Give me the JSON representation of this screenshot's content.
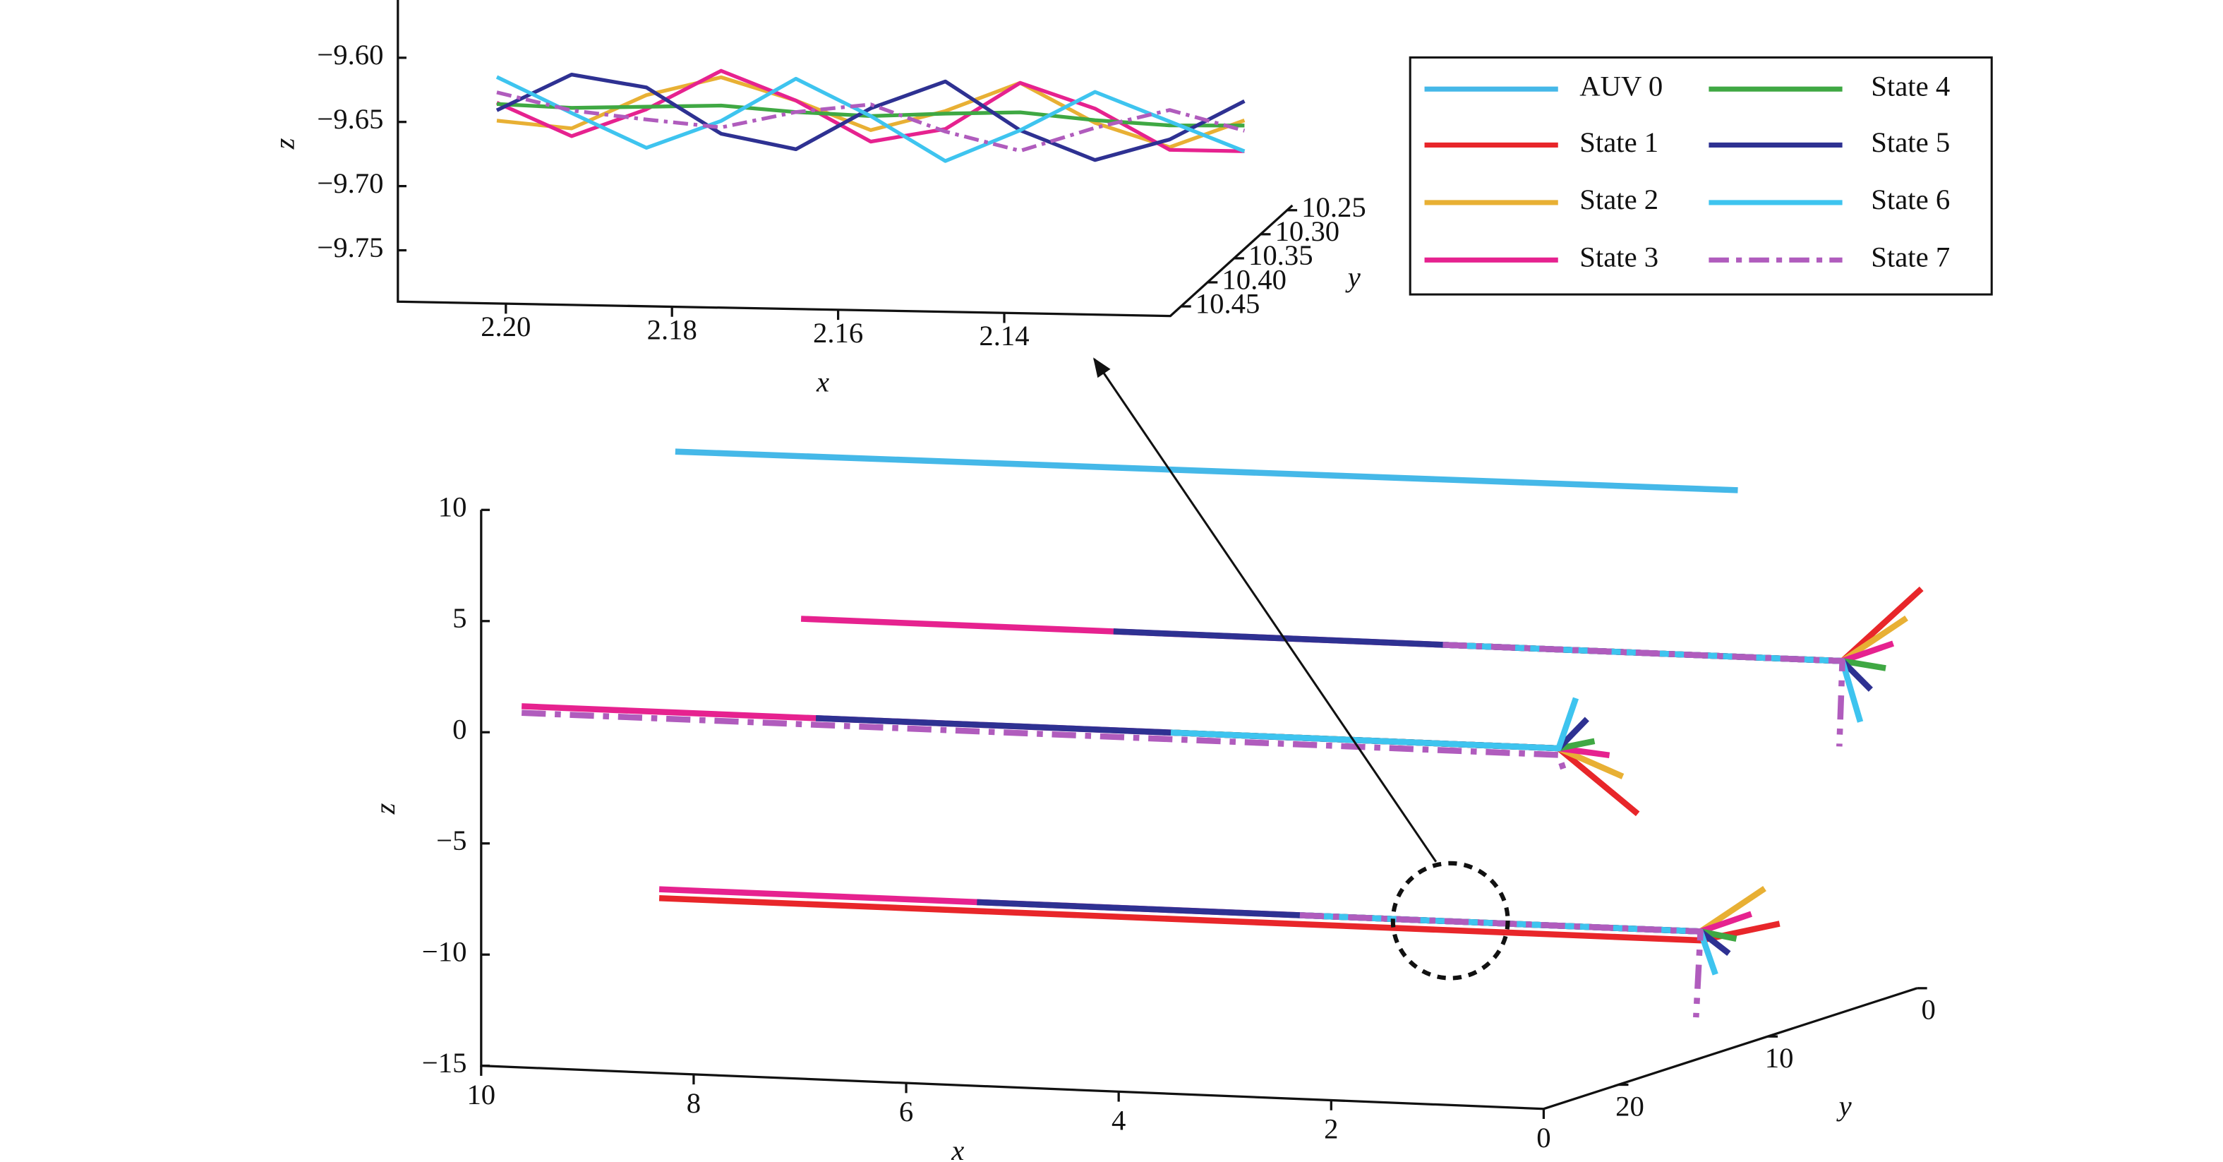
{
  "chart_data": [
    {
      "type": "line3d",
      "xlabel": "x",
      "ylabel": "y",
      "zlabel": "z",
      "xlim": [
        2.213,
        2.12
      ],
      "ylim": [
        10.24,
        10.47
      ],
      "zlim": [
        -9.79,
        -9.555
      ],
      "xticks": [
        {
          "value": 2.2,
          "label": "2.20"
        },
        {
          "value": 2.18,
          "label": "2.18"
        },
        {
          "value": 2.16,
          "label": "2.16"
        },
        {
          "value": 2.14,
          "label": "2.14"
        }
      ],
      "yticks": [
        10.25,
        {
          "value": 10.3,
          "label": "10.30"
        },
        10.35,
        {
          "value": 10.4,
          "label": "10.40"
        },
        10.45
      ],
      "zticks": [
        {
          "value": -9.6,
          "label": "−9.60"
        },
        {
          "value": -9.65,
          "label": "−9.65"
        },
        {
          "value": -9.7,
          "label": "−9.70"
        },
        {
          "value": -9.75,
          "label": "−9.75"
        }
      ],
      "series": [
        {
          "color": "#e8b034",
          "x": [
            2.203,
            2.194,
            2.185,
            2.176,
            2.167,
            2.158,
            2.149,
            2.14,
            2.131,
            2.122,
            2.113
          ],
          "y": [
            10.44,
            10.44,
            10.44,
            10.44,
            10.44,
            10.44,
            10.44,
            10.44,
            10.44,
            10.44,
            10.44
          ],
          "z": [
            -9.659,
            -9.664,
            -9.637,
            -9.622,
            -9.639,
            -9.661,
            -9.645,
            -9.622,
            -9.652,
            -9.67,
            -9.648
          ]
        },
        {
          "color": "#e6228f",
          "x": [
            2.203,
            2.194,
            2.185,
            2.176,
            2.167,
            2.158,
            2.149,
            2.14,
            2.131,
            2.122,
            2.113
          ],
          "y": [
            10.44,
            10.44,
            10.44,
            10.44,
            10.44,
            10.44,
            10.44,
            10.44,
            10.44,
            10.44,
            10.44
          ],
          "z": [
            -9.645,
            -9.67,
            -9.648,
            -9.617,
            -9.639,
            -9.67,
            -9.659,
            -9.622,
            -9.641,
            -9.672,
            -9.672
          ]
        },
        {
          "color": "#3fa843",
          "x": [
            2.203,
            2.194,
            2.185,
            2.176,
            2.167,
            2.158,
            2.149,
            2.14,
            2.131,
            2.122,
            2.113
          ],
          "y": [
            10.44,
            10.44,
            10.44,
            10.44,
            10.44,
            10.44,
            10.44,
            10.44,
            10.44,
            10.44,
            10.44
          ],
          "z": [
            -9.646,
            -9.648,
            -9.646,
            -9.644,
            -9.648,
            -9.65,
            -9.647,
            -9.645,
            -9.65,
            -9.653,
            -9.652
          ]
        },
        {
          "color": "#2e3192",
          "x": [
            2.203,
            2.194,
            2.185,
            2.176,
            2.167,
            2.158,
            2.149,
            2.14,
            2.131,
            2.122,
            2.113
          ],
          "y": [
            10.44,
            10.44,
            10.44,
            10.44,
            10.44,
            10.44,
            10.44,
            10.44,
            10.44,
            10.44,
            10.44
          ],
          "z": [
            -9.651,
            -9.622,
            -9.631,
            -9.666,
            -9.677,
            -9.644,
            -9.622,
            -9.659,
            -9.681,
            -9.664,
            -9.633
          ]
        },
        {
          "color": "#3ec4ef",
          "x": [
            2.203,
            2.194,
            2.185,
            2.176,
            2.167,
            2.158,
            2.149,
            2.14,
            2.131,
            2.122,
            2.113
          ],
          "y": [
            10.44,
            10.44,
            10.44,
            10.44,
            10.44,
            10.44,
            10.44,
            10.44,
            10.44,
            10.44,
            10.44
          ],
          "z": [
            -9.625,
            -9.652,
            -9.678,
            -9.656,
            -9.622,
            -9.65,
            -9.684,
            -9.659,
            -9.628,
            -9.65,
            -9.672
          ]
        },
        {
          "color": "#b05cbd",
          "linestyle": "dashdot",
          "x": [
            2.203,
            2.194,
            2.185,
            2.176,
            2.167,
            2.158,
            2.149,
            2.14,
            2.131,
            2.122,
            2.113
          ],
          "y": [
            10.44,
            10.44,
            10.44,
            10.44,
            10.44,
            10.44,
            10.44,
            10.44,
            10.44,
            10.44,
            10.44
          ],
          "z": [
            -9.637,
            -9.65,
            -9.656,
            -9.661,
            -9.648,
            -9.641,
            -9.661,
            -9.675,
            -9.656,
            -9.641,
            -9.656
          ]
        }
      ]
    },
    {
      "type": "line3d",
      "xlabel": "x",
      "ylabel": "y",
      "zlabel": "z",
      "xlim": [
        10,
        0
      ],
      "ylim": [
        0,
        25
      ],
      "zlim": [
        -15,
        10
      ],
      "xticks": [
        10,
        8,
        6,
        4,
        2,
        0
      ],
      "yticks": [
        0,
        10,
        20
      ],
      "zticks": [
        10,
        5,
        0,
        {
          "value": -5,
          "label": "−5"
        },
        {
          "value": -10,
          "label": "−10"
        },
        {
          "value": -15,
          "label": "−15"
        }
      ],
      "series": [
        {
          "name": "AUV 0",
          "color": "#45b8e8",
          "x": [
            10,
            0
          ],
          "y": [
            12,
            12
          ],
          "z": [
            9.8,
            10
          ]
        },
        {
          "name": "State 1",
          "color": "#e8262a",
          "x": [
            3.76,
            0,
            0,
            null,
            3.65,
            0,
            0,
            null,
            9.8,
            0,
            0
          ],
          "y": [
            5,
            5,
            -0.3,
            null,
            24,
            24,
            18.7,
            null,
            14.5,
            14.5,
            9.2
          ],
          "z": [
            0.8,
            0.8,
            2.9,
            null,
            1,
            1,
            -3.1,
            null,
            -9.7,
            -9.7,
            -10.1
          ]
        },
        {
          "name": "State 2",
          "color": "#e8b034",
          "x": [
            3.76,
            0,
            0,
            null,
            3.65,
            0,
            0,
            null,
            3.77,
            0,
            0
          ],
          "y": [
            5,
            5,
            0.7,
            null,
            24,
            24,
            19.7,
            null,
            14.5,
            14.5,
            10.2
          ],
          "z": [
            0.8,
            0.8,
            1.8,
            null,
            1,
            1,
            -1.2,
            null,
            -9.3,
            -9.3,
            -8.3
          ]
        },
        {
          "name": "State 3",
          "color": "#e6228f",
          "x": [
            9.8,
            0,
            0,
            null,
            9.76,
            0,
            0,
            null,
            9.8,
            0,
            0
          ],
          "y": [
            5,
            5,
            1.6,
            null,
            24,
            24,
            20.6,
            null,
            14.5,
            14.5,
            11.1
          ],
          "z": [
            0.8,
            0.8,
            0.85,
            null,
            1,
            1,
            -0.05,
            null,
            -9.3,
            -9.3,
            -9.25
          ]
        },
        {
          "name": "State 4",
          "color": "#3fa843",
          "x": [
            3.76,
            0,
            0,
            null,
            3.65,
            0,
            0,
            null,
            3.77,
            0,
            0
          ],
          "y": [
            5,
            5,
            2.1,
            null,
            24,
            24,
            21.6,
            null,
            14.5,
            14.5,
            12.1
          ],
          "z": [
            0.8,
            0.8,
            -0.15,
            null,
            1,
            1,
            0.8,
            null,
            -9.3,
            -9.3,
            -10.15
          ]
        },
        {
          "name": "State 5",
          "color": "#2e3192",
          "x": [
            6.86,
            0,
            0,
            null,
            6.99,
            0,
            0,
            null,
            6.81,
            0,
            0
          ],
          "y": [
            5,
            5,
            3.1,
            null,
            24,
            24,
            22.1,
            null,
            14.5,
            14.5,
            12.6
          ],
          "z": [
            0.8,
            0.8,
            -0.9,
            null,
            1,
            1,
            1.9,
            null,
            -9.3,
            -9.3,
            -10.7
          ]
        },
        {
          "name": "State 6",
          "color": "#3ec4ef",
          "x": [
            3.76,
            0,
            0,
            null,
            3.65,
            0,
            0,
            null,
            3.77,
            0,
            0
          ],
          "y": [
            5,
            5,
            3.8,
            null,
            24,
            24,
            22.85,
            null,
            14.5,
            14.5,
            13.5
          ],
          "z": [
            0.8,
            0.8,
            -2.2,
            null,
            1,
            1,
            3,
            null,
            -9.3,
            -9.3,
            -11.45
          ]
        },
        {
          "name": "State 7",
          "color": "#b05cbd",
          "linestyle": "dashdot",
          "x": [
            3.76,
            0,
            0,
            null,
            9.76,
            0,
            0,
            null,
            3.77,
            0,
            0
          ],
          "y": [
            5,
            5,
            5.2,
            null,
            24,
            24,
            23.5,
            null,
            14.5,
            14.5,
            14.8
          ],
          "z": [
            0.8,
            0.8,
            -3,
            null,
            0.7,
            0.7,
            -0.4,
            null,
            -9.3,
            -9.3,
            -13.1
          ]
        }
      ]
    }
  ]
}
